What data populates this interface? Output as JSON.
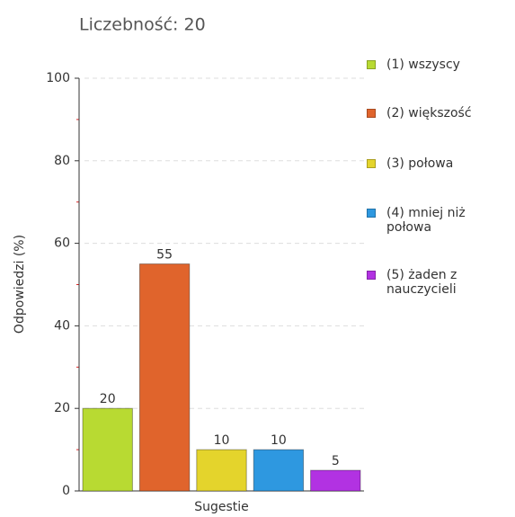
{
  "chart_data": {
    "type": "bar",
    "title": "Liczebność: 20",
    "y_label": "Odpowiedzi (%)",
    "categories": [
      "Sugestie"
    ],
    "series": [
      {
        "name": "(1) wszyscy",
        "color": "#b8da32",
        "values": [
          20
        ]
      },
      {
        "name": "(2) większość",
        "color": "#e0642c",
        "values": [
          55
        ]
      },
      {
        "name": "(3) połowa",
        "color": "#e4d42c",
        "values": [
          10
        ]
      },
      {
        "name": "(4) mniej niż połowa",
        "color": "#2e98e0",
        "values": [
          10
        ]
      },
      {
        "name": "(5) żaden z nauczycieli",
        "color": "#b232e2",
        "values": [
          5
        ]
      }
    ],
    "ylim": [
      0,
      100
    ],
    "yticks": [
      0,
      20,
      40,
      60,
      80,
      100
    ],
    "minor_yticks": [
      10,
      30,
      50,
      70,
      90
    ],
    "grid": true,
    "legend": "right"
  }
}
